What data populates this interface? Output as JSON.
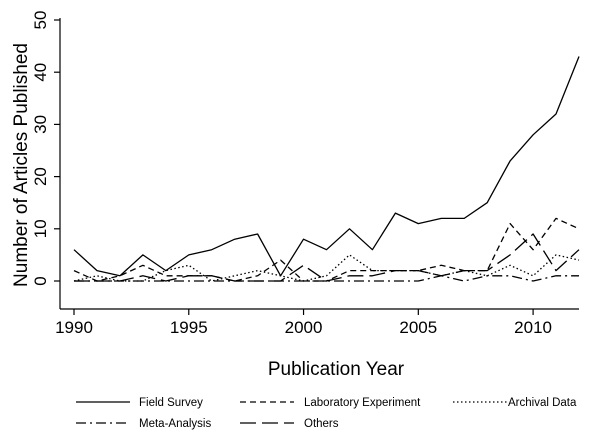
{
  "chart_data": {
    "type": "line",
    "title": "",
    "xlabel": "Publication Year",
    "ylabel": "Number of Articles Published",
    "xlim": [
      1990,
      2012
    ],
    "ylim": [
      0,
      50
    ],
    "xticks": [
      1990,
      1995,
      2000,
      2005,
      2010
    ],
    "yticks": [
      0,
      10,
      20,
      30,
      40,
      50
    ],
    "grid": false,
    "legend_position": "bottom",
    "x": [
      1990,
      1991,
      1992,
      1993,
      1994,
      1995,
      1996,
      1997,
      1998,
      1999,
      2000,
      2001,
      2002,
      2003,
      2004,
      2005,
      2006,
      2007,
      2008,
      2009,
      2010,
      2011,
      2012
    ],
    "series": [
      {
        "name": "Field Survey",
        "dash": "solid",
        "values": [
          6,
          2,
          1,
          5,
          2,
          5,
          6,
          8,
          9,
          1,
          8,
          6,
          10,
          6,
          13,
          11,
          12,
          12,
          15,
          23,
          28,
          32,
          43
        ]
      },
      {
        "name": "Laboratory Experiment",
        "dash": "short-dash",
        "values": [
          2,
          0,
          1,
          3,
          1,
          1,
          1,
          0,
          1,
          4,
          0,
          0,
          2,
          2,
          2,
          2,
          3,
          2,
          2,
          11,
          6,
          12,
          10
        ]
      },
      {
        "name": "Archival Data",
        "dash": "dot",
        "values": [
          0,
          1,
          0,
          0,
          2,
          3,
          0,
          1,
          2,
          1,
          0,
          1,
          5,
          2,
          2,
          2,
          1,
          2,
          1,
          3,
          1,
          5,
          4
        ]
      },
      {
        "name": "Meta-Analysis",
        "dash": "dash-dot",
        "values": [
          0,
          0,
          0,
          0,
          0,
          0,
          0,
          0,
          0,
          0,
          0,
          0,
          0,
          0,
          0,
          0,
          1,
          0,
          1,
          1,
          0,
          1,
          1
        ]
      },
      {
        "name": "Others",
        "dash": "long-dash",
        "values": [
          0,
          0,
          0,
          1,
          0,
          1,
          1,
          0,
          0,
          0,
          3,
          0,
          1,
          1,
          2,
          2,
          1,
          2,
          2,
          5,
          9,
          2,
          6
        ]
      }
    ]
  }
}
